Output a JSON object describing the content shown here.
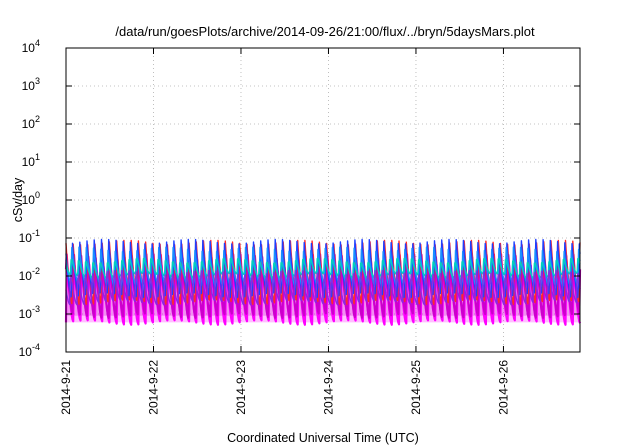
{
  "chart_data": {
    "type": "area",
    "title": "/data/run/goesPlots/archive/2014-09-26/21:00/flux/../bryn/5daysMars.plot",
    "xlabel": "Coordinated Universal Time (UTC)",
    "ylabel": "cSv/day",
    "yscale": "log",
    "ylim": [
      0.0001,
      10000
    ],
    "xlim": [
      "2014-09-21 00:00",
      "2014-09-26 21:00"
    ],
    "grid": true,
    "x_ticks": [
      "2014-9-21",
      "2014-9-22",
      "2014-9-23",
      "2014-9-24",
      "2014-9-25",
      "2014-9-26"
    ],
    "y_ticks": [
      {
        "base": "10",
        "exp": "-4"
      },
      {
        "base": "10",
        "exp": "-3"
      },
      {
        "base": "10",
        "exp": "-2"
      },
      {
        "base": "10",
        "exp": "-1"
      },
      {
        "base": "10",
        "exp": "0"
      },
      {
        "base": "10",
        "exp": "1"
      },
      {
        "base": "10",
        "exp": "2"
      },
      {
        "base": "10",
        "exp": "3"
      },
      {
        "base": "10",
        "exp": "4"
      }
    ],
    "cycles_per_day": 12,
    "series": [
      {
        "color": "#ff00ff",
        "peak": 0.03,
        "trough": 0.0006
      },
      {
        "color": "#cc00cc",
        "peak": 0.05,
        "trough": 0.0009
      },
      {
        "color": "#ff2a2a",
        "peak": 0.1,
        "trough": 0.002
      },
      {
        "color": "#1f3fff",
        "peak": 0.09,
        "trough": 0.003
      },
      {
        "color": "#1a8fff",
        "peak": 0.05,
        "trough": 0.006
      },
      {
        "color": "#00d0c0",
        "peak": 0.03,
        "trough": 0.01
      },
      {
        "color": "#8a2be2",
        "peak": 0.015,
        "trough": 0.002
      }
    ]
  }
}
